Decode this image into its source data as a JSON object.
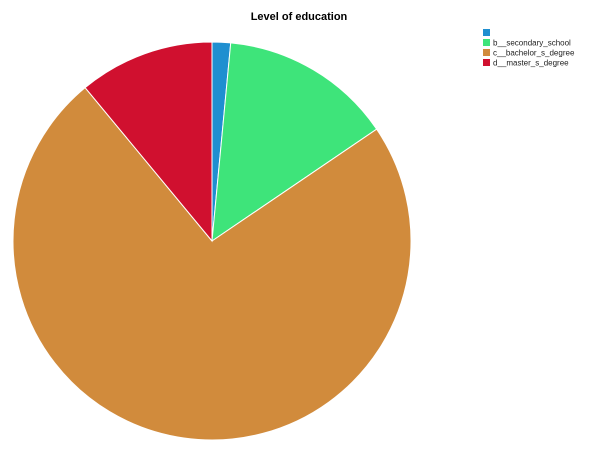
{
  "chart_data": {
    "type": "pie",
    "title": "Level of education",
    "slices": [
      {
        "label": "",
        "value": 1.5,
        "color": "#1f8fd0"
      },
      {
        "label": "b__secondary_school",
        "value": 14.0,
        "color": "#3ee47a"
      },
      {
        "label": "c__bachelor_s_degree",
        "value": 73.5,
        "color": "#d18b3c"
      },
      {
        "label": "d__master_s_degree",
        "value": 11.0,
        "color": "#d0102f"
      }
    ],
    "start_angle_deg": 0,
    "direction": "clockwise",
    "legend_position": "top-right",
    "slice_border_color": "#ffffff"
  }
}
